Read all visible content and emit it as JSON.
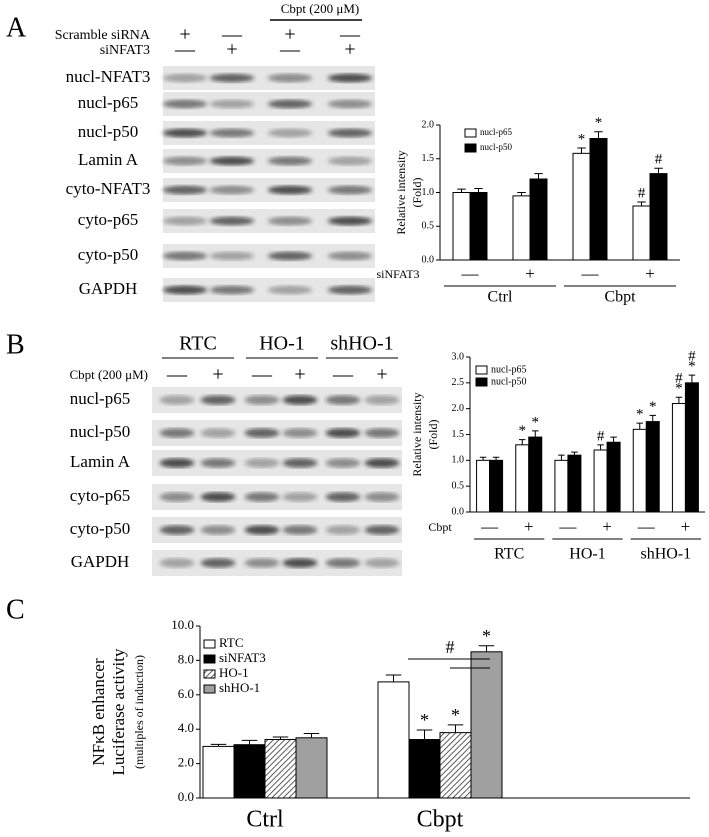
{
  "panels": {
    "a": "A",
    "b": "B",
    "c": "C"
  },
  "blot_a": {
    "treatments": [
      {
        "label": "Scramble siRNA",
        "signs": [
          "+",
          "—",
          "+",
          "—"
        ]
      },
      {
        "label": "siNFAT3",
        "signs": [
          "—",
          "+",
          "—",
          "+"
        ]
      }
    ],
    "header": "Cbpt (200 μM)",
    "rows": [
      "nucl-NFAT3",
      "nucl-p65",
      "nucl-p50",
      "Lamin A",
      "cyto-NFAT3",
      "cyto-p65",
      "cyto-p50",
      "GAPDH"
    ]
  },
  "blot_b": {
    "groups": [
      "RTC",
      "HO-1",
      "shHO-1"
    ],
    "treatment": {
      "label": "Cbpt (200 μM)",
      "signs": [
        "—",
        "+",
        "—",
        "+",
        "—",
        "+"
      ]
    },
    "rows": [
      "nucl-p65",
      "nucl-p50",
      "Lamin A",
      "cyto-p65",
      "cyto-p50",
      "GAPDH"
    ]
  },
  "chart_data": [
    {
      "type": "bar",
      "ylabel": [
        "Relative intensity",
        "(Fold)"
      ],
      "row_label": "siNFAT3",
      "categories": [
        "—",
        "+",
        "—",
        "+"
      ],
      "groups": [
        "Ctrl",
        "Cbpt"
      ],
      "ylim": [
        0,
        2
      ],
      "yticks": [
        {
          "value": 0,
          "label": "0.0"
        },
        {
          "value": 0.5,
          "label": "0.5"
        },
        {
          "value": 1,
          "label": "1.0"
        },
        {
          "value": 1.5,
          "label": "1.5"
        },
        {
          "value": 2,
          "label": "2.0"
        }
      ],
      "series": [
        {
          "name": "nucl-p65",
          "color": "#ffffff",
          "values": [
            1.0,
            0.95,
            1.58,
            0.8
          ],
          "errors": [
            0.05,
            0.05,
            0.08,
            0.06
          ],
          "annotations": [
            null,
            null,
            "*",
            "#"
          ]
        },
        {
          "name": "nucl-p50",
          "color": "#000000",
          "values": [
            1.0,
            1.2,
            1.8,
            1.28
          ],
          "errors": [
            0.06,
            0.08,
            0.1,
            0.08
          ],
          "annotations": [
            null,
            null,
            "*",
            "#"
          ]
        }
      ]
    },
    {
      "type": "bar",
      "ylabel": [
        "Relative intensity",
        "(Fold)"
      ],
      "row_label": "Cbpt",
      "categories": [
        "—",
        "+",
        "—",
        "+",
        "—",
        "+"
      ],
      "groups": [
        "RTC",
        "HO-1",
        "shHO-1"
      ],
      "ylim": [
        0,
        3
      ],
      "yticks": [
        {
          "value": 0,
          "label": "0.0"
        },
        {
          "value": 0.5,
          "label": "0.5"
        },
        {
          "value": 1,
          "label": "1.0"
        },
        {
          "value": 1.5,
          "label": "1.5"
        },
        {
          "value": 2,
          "label": "2.0"
        },
        {
          "value": 2.5,
          "label": "2.5"
        },
        {
          "value": 3,
          "label": "3.0"
        }
      ],
      "series": [
        {
          "name": "nucl-p65",
          "color": "#ffffff",
          "values": [
            1.0,
            1.3,
            1.0,
            1.2,
            1.6,
            2.1
          ],
          "errors": [
            0.06,
            0.1,
            0.1,
            0.1,
            0.12,
            0.12
          ],
          "annotations": [
            null,
            "*",
            null,
            "#",
            "*",
            [
              "*",
              "#"
            ]
          ]
        },
        {
          "name": "nucl-p50",
          "color": "#000000",
          "values": [
            1.0,
            1.45,
            1.1,
            1.35,
            1.75,
            2.5
          ],
          "errors": [
            0.06,
            0.12,
            0.06,
            0.1,
            0.12,
            0.15
          ],
          "annotations": [
            null,
            "*",
            null,
            null,
            "*",
            [
              "*",
              "#"
            ]
          ]
        }
      ]
    },
    {
      "type": "bar",
      "ylabel": [
        "NFκB enhancer",
        "Luciferase activity",
        "(multiples of induction)"
      ],
      "categories": [
        "Ctrl",
        "Cbpt"
      ],
      "ylim": [
        0,
        10
      ],
      "yticks": [
        {
          "value": 0,
          "label": "0.0"
        },
        {
          "value": 2,
          "label": "2.0"
        },
        {
          "value": 4,
          "label": "4.0"
        },
        {
          "value": 6,
          "label": "6.0"
        },
        {
          "value": 8,
          "label": "8.0"
        },
        {
          "value": 10,
          "label": "10.0"
        }
      ],
      "bracket_label": "#",
      "series": [
        {
          "name": "RTC",
          "color": "#ffffff",
          "values": [
            3.0,
            6.75
          ],
          "errors": [
            0.12,
            0.4
          ],
          "annotations": [
            null,
            null
          ]
        },
        {
          "name": "siNFAT3",
          "color": "#000000",
          "values": [
            3.1,
            3.4
          ],
          "errors": [
            0.25,
            0.55
          ],
          "annotations": [
            null,
            "*"
          ]
        },
        {
          "name": "HO-1",
          "color": "#ffffff",
          "hatch": true,
          "values": [
            3.4,
            3.8
          ],
          "errors": [
            0.15,
            0.45
          ],
          "annotations": [
            null,
            "*"
          ]
        },
        {
          "name": "shHO-1",
          "color": "#a0a0a0",
          "values": [
            3.5,
            8.5
          ],
          "errors": [
            0.25,
            0.35
          ],
          "annotations": [
            null,
            "*"
          ]
        }
      ]
    }
  ]
}
